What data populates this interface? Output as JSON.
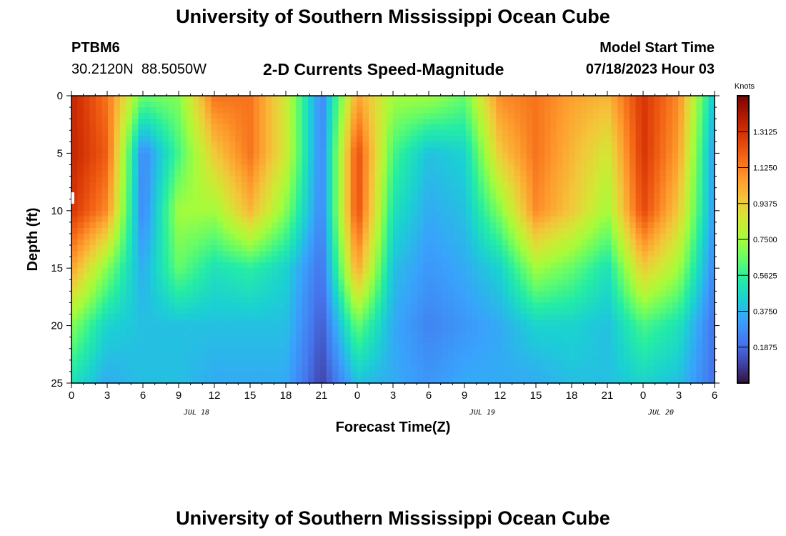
{
  "header": {
    "title": "University of Southern Mississippi Ocean Cube",
    "station": "PTBM6",
    "coords": "30.2120N  88.5050W",
    "chart_title": "2-D Currents Speed-Magnitude",
    "model_start_label": "Model Start Time",
    "model_start_value": "07/18/2023 Hour 03"
  },
  "footer": {
    "title": "University of Southern Mississippi Ocean Cube"
  },
  "chart_data": {
    "type": "heatmap",
    "title": "2-D Currents Speed-Magnitude",
    "xlabel": "Forecast Time(Z)",
    "ylabel": "Depth (ft)",
    "x_ticks": [
      "0",
      "3",
      "6",
      "9",
      "12",
      "15",
      "18",
      "21",
      "0",
      "3",
      "6",
      "9",
      "12",
      "15",
      "18",
      "21",
      "0",
      "3",
      "6"
    ],
    "x_range_hours": [
      0,
      54
    ],
    "day_labels": [
      {
        "label": "JUL 18",
        "hour": 10.5
      },
      {
        "label": "JUL 19",
        "hour": 34.5
      },
      {
        "label": "JUL 20",
        "hour": 49.5
      }
    ],
    "y_ticks": [
      "0",
      "5",
      "10",
      "15",
      "20",
      "25"
    ],
    "y_range_ft": [
      0,
      25
    ],
    "y_inverted": true,
    "colorbar": {
      "unit": "Knots",
      "ticks": [
        "0.1875",
        "0.3750",
        "0.5625",
        "0.7500",
        "0.9375",
        "1.1250",
        "1.3125"
      ],
      "range": [
        0,
        1.5
      ]
    },
    "x_hours_sample": [
      0,
      3,
      6,
      9,
      12,
      15,
      18,
      21,
      24,
      27,
      30,
      33,
      36,
      39,
      42,
      45,
      48,
      51,
      54
    ],
    "rows_depth_ft": [
      0,
      5,
      10,
      15,
      20,
      25
    ],
    "values_knots": [
      [
        1.35,
        1.15,
        0.65,
        0.7,
        1.15,
        1.15,
        0.85,
        0.25,
        1.05,
        0.75,
        0.75,
        0.65,
        1.1,
        1.15,
        1.05,
        1.0,
        1.3,
        1.1,
        0.4
      ],
      [
        1.35,
        1.2,
        0.25,
        0.6,
        0.95,
        1.15,
        0.85,
        0.25,
        1.25,
        0.6,
        0.4,
        0.45,
        0.95,
        1.15,
        1.0,
        0.85,
        1.3,
        1.05,
        0.3
      ],
      [
        1.3,
        1.1,
        0.25,
        0.75,
        0.75,
        1.0,
        0.7,
        0.25,
        1.25,
        0.5,
        0.35,
        0.4,
        0.7,
        1.1,
        0.95,
        0.75,
        1.25,
        0.95,
        0.3
      ],
      [
        1.05,
        0.7,
        0.35,
        0.65,
        0.5,
        0.55,
        0.45,
        0.2,
        1.05,
        0.4,
        0.3,
        0.35,
        0.45,
        0.75,
        0.65,
        0.5,
        0.95,
        0.75,
        0.25
      ],
      [
        0.7,
        0.45,
        0.4,
        0.4,
        0.4,
        0.4,
        0.4,
        0.15,
        0.65,
        0.35,
        0.25,
        0.3,
        0.35,
        0.45,
        0.45,
        0.4,
        0.6,
        0.5,
        0.2
      ],
      [
        0.5,
        0.35,
        0.4,
        0.4,
        0.35,
        0.35,
        0.35,
        0.1,
        0.4,
        0.35,
        0.3,
        0.35,
        0.35,
        0.35,
        0.4,
        0.4,
        0.45,
        0.4,
        0.2
      ]
    ]
  }
}
